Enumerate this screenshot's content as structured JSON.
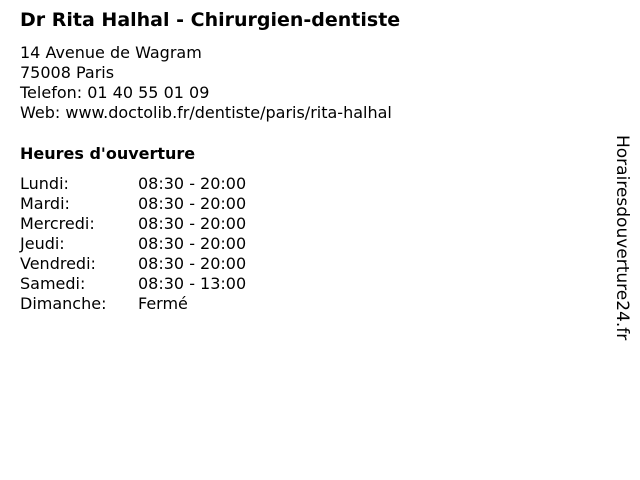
{
  "title": "Dr Rita Halhal - Chirurgien-dentiste",
  "address": "14 Avenue de Wagram",
  "city": "75008 Paris",
  "phone": "Telefon: 01 40 55 01 09",
  "web": "Web: www.doctolib.fr/dentiste/paris/rita-halhal",
  "hours_heading": "Heures d'ouverture",
  "hours": [
    {
      "day": "Lundi:",
      "time": "08:30 - 20:00"
    },
    {
      "day": "Mardi:",
      "time": "08:30 - 20:00"
    },
    {
      "day": "Mercredi:",
      "time": "08:30 - 20:00"
    },
    {
      "day": "Jeudi:",
      "time": "08:30 - 20:00"
    },
    {
      "day": "Vendredi:",
      "time": "08:30 - 20:00"
    },
    {
      "day": "Samedi:",
      "time": "08:30 - 13:00"
    },
    {
      "day": "Dimanche:",
      "time": "Fermé"
    }
  ],
  "brand": "Horairesdouverture24.fr"
}
